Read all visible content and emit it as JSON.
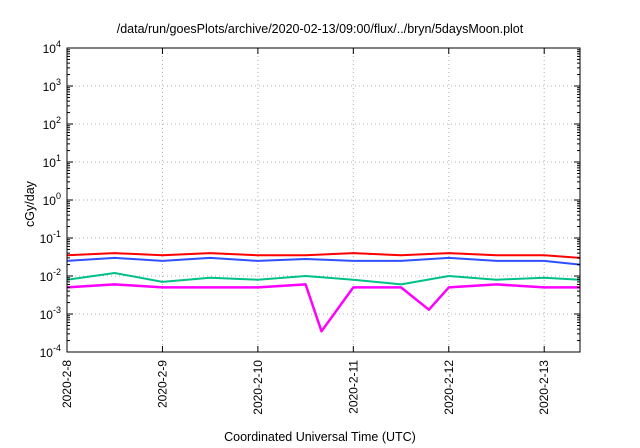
{
  "chart_data": {
    "type": "line",
    "title": "/data/run/goesPlots/archive/2020-02-13/09:00/flux/../bryn/5daysMoon.plot",
    "xlabel": "Coordinated Universal Time (UTC)",
    "ylabel": "cGy/day",
    "yscale": "log",
    "ylim": [
      0.0001,
      10000
    ],
    "y_ticks": [
      {
        "base": "10",
        "exp": "-4",
        "value": 0.0001
      },
      {
        "base": "10",
        "exp": "-3",
        "value": 0.001
      },
      {
        "base": "10",
        "exp": "-2",
        "value": 0.01
      },
      {
        "base": "10",
        "exp": "-1",
        "value": 0.1
      },
      {
        "base": "10",
        "exp": "0",
        "value": 1
      },
      {
        "base": "10",
        "exp": "1",
        "value": 10
      },
      {
        "base": "10",
        "exp": "2",
        "value": 100
      },
      {
        "base": "10",
        "exp": "3",
        "value": 1000
      },
      {
        "base": "10",
        "exp": "4",
        "value": 10000
      }
    ],
    "x_ticks": [
      "2020-2-8",
      "2020-2-9",
      "2020-2-10",
      "2020-2-11",
      "2020-2-12",
      "2020-2-13"
    ],
    "xlim": [
      "2020-02-08 00:00",
      "2020-02-13 09:00"
    ],
    "grid": true,
    "legend": "none",
    "series": [
      {
        "color": "#ff0000",
        "x": [
          "2020-02-08 00:00",
          "2020-02-08 12:00",
          "2020-02-09 00:00",
          "2020-02-09 12:00",
          "2020-02-10 00:00",
          "2020-02-10 12:00",
          "2020-02-11 00:00",
          "2020-02-11 12:00",
          "2020-02-12 00:00",
          "2020-02-12 12:00",
          "2020-02-13 00:00",
          "2020-02-13 09:00"
        ],
        "y": [
          0.035,
          0.04,
          0.035,
          0.04,
          0.035,
          0.035,
          0.04,
          0.035,
          0.04,
          0.035,
          0.035,
          0.03
        ]
      },
      {
        "color": "#00c08a",
        "x": [
          "2020-02-08 00:00",
          "2020-02-08 12:00",
          "2020-02-09 00:00",
          "2020-02-09 12:00",
          "2020-02-10 00:00",
          "2020-02-10 12:00",
          "2020-02-11 00:00",
          "2020-02-11 12:00",
          "2020-02-12 00:00",
          "2020-02-12 12:00",
          "2020-02-13 00:00",
          "2020-02-13 09:00"
        ],
        "y": [
          0.008,
          0.012,
          0.007,
          0.009,
          0.008,
          0.01,
          0.008,
          0.006,
          0.01,
          0.008,
          0.009,
          0.008
        ]
      },
      {
        "color": "#3050ff",
        "x": [
          "2020-02-08 00:00",
          "2020-02-08 12:00",
          "2020-02-09 00:00",
          "2020-02-09 12:00",
          "2020-02-10 00:00",
          "2020-02-10 12:00",
          "2020-02-11 00:00",
          "2020-02-11 12:00",
          "2020-02-12 00:00",
          "2020-02-12 12:00",
          "2020-02-13 00:00",
          "2020-02-13 09:00"
        ],
        "y": [
          0.025,
          0.03,
          0.025,
          0.03,
          0.025,
          0.028,
          0.025,
          0.025,
          0.03,
          0.025,
          0.025,
          0.02
        ]
      },
      {
        "color": "#ff00ff",
        "x": [
          "2020-02-08 00:00",
          "2020-02-08 12:00",
          "2020-02-09 00:00",
          "2020-02-09 12:00",
          "2020-02-10 00:00",
          "2020-02-10 12:00",
          "2020-02-10 16:00",
          "2020-02-11 00:00",
          "2020-02-11 12:00",
          "2020-02-11 19:00",
          "2020-02-12 00:00",
          "2020-02-12 12:00",
          "2020-02-13 00:00",
          "2020-02-13 09:00"
        ],
        "y": [
          0.005,
          0.006,
          0.005,
          0.005,
          0.005,
          0.006,
          0.00035,
          0.005,
          0.005,
          0.0013,
          0.005,
          0.006,
          0.005,
          0.005
        ]
      }
    ]
  }
}
